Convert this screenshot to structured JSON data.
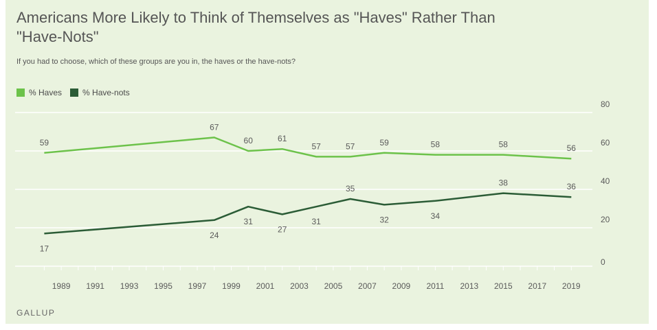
{
  "chart_data": {
    "type": "line",
    "title": "Americans More Likely to Think of Themselves as \"Haves\" Rather Than \"Have-Nots\"",
    "subtitle": "If you had to choose, which of these groups are you in, the haves or the have-nots?",
    "source": "GALLUP",
    "ylim": [
      0,
      80
    ],
    "yticks": [
      0,
      20,
      40,
      60,
      80
    ],
    "xlim": [
      1987.5,
      2020
    ],
    "xticks": [
      1989,
      1991,
      1993,
      1995,
      1997,
      1999,
      2001,
      2003,
      2005,
      2007,
      2009,
      2011,
      2013,
      2015,
      2017,
      2019
    ],
    "grid": true,
    "legend_position": "top-left",
    "series": [
      {
        "name": "% Haves",
        "color": "#6cc24a",
        "points": [
          {
            "x": 1988,
            "y": 59
          },
          {
            "x": 1998,
            "y": 67
          },
          {
            "x": 2000,
            "y": 60
          },
          {
            "x": 2002,
            "y": 61
          },
          {
            "x": 2004,
            "y": 57
          },
          {
            "x": 2006,
            "y": 57
          },
          {
            "x": 2008,
            "y": 59
          },
          {
            "x": 2011,
            "y": 58
          },
          {
            "x": 2015,
            "y": 58
          },
          {
            "x": 2019,
            "y": 56
          }
        ],
        "labels": [
          {
            "x": 1988,
            "y": 59
          },
          {
            "x": 1998,
            "y": 67
          },
          {
            "x": 2000,
            "y": 60
          },
          {
            "x": 2002,
            "y": 61
          },
          {
            "x": 2004,
            "y": 57
          },
          {
            "x": 2006,
            "y": 57
          },
          {
            "x": 2008,
            "y": 59
          },
          {
            "x": 2011,
            "y": 58
          },
          {
            "x": 2015,
            "y": 58
          },
          {
            "x": 2019,
            "y": 56
          }
        ]
      },
      {
        "name": "% Have-nots",
        "color": "#2b5c36",
        "points": [
          {
            "x": 1988,
            "y": 17
          },
          {
            "x": 1998,
            "y": 24
          },
          {
            "x": 2000,
            "y": 31
          },
          {
            "x": 2002,
            "y": 27
          },
          {
            "x": 2004,
            "y": 31
          },
          {
            "x": 2006,
            "y": 35
          },
          {
            "x": 2008,
            "y": 32
          },
          {
            "x": 2011,
            "y": 34
          },
          {
            "x": 2015,
            "y": 38
          },
          {
            "x": 2019,
            "y": 36
          }
        ],
        "labels": [
          {
            "x": 1988,
            "y": 17
          },
          {
            "x": 1998,
            "y": 24
          },
          {
            "x": 2000,
            "y": 31
          },
          {
            "x": 2002,
            "y": 27
          },
          {
            "x": 2004,
            "y": 31
          },
          {
            "x": 2006,
            "y": 35
          },
          {
            "x": 2008,
            "y": 32
          },
          {
            "x": 2011,
            "y": 34
          },
          {
            "x": 2015,
            "y": 38
          },
          {
            "x": 2019,
            "y": 36
          }
        ]
      }
    ]
  }
}
